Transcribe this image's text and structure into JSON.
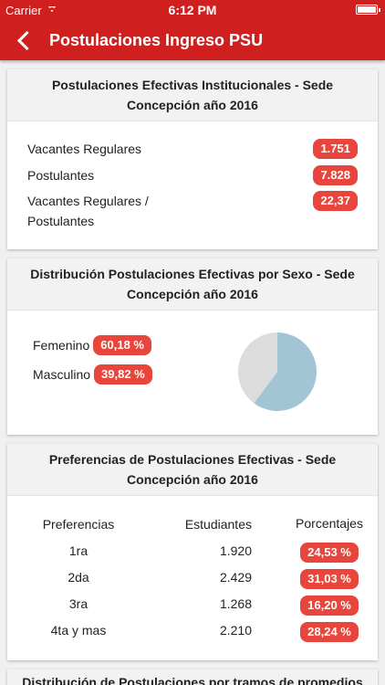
{
  "status": {
    "carrier": "Carrier",
    "time": "6:12 PM"
  },
  "nav": {
    "title": "Postulaciones Ingreso PSU"
  },
  "card1": {
    "title": "Postulaciones Efectivas Institucionales - Sede Concepción año 2016",
    "rows": [
      {
        "label": "Vacantes Regulares",
        "value": "1.751"
      },
      {
        "label": "Postulantes",
        "value": "7.828"
      },
      {
        "label": "Vacantes Regulares / Postulantes",
        "value": "22,37"
      }
    ]
  },
  "card2": {
    "title": "Distribución Postulaciones Efectivas por Sexo - Sede Concepción año 2016",
    "rows": [
      {
        "label": "Femenino",
        "value": "60,18 %"
      },
      {
        "label": "Masculino",
        "value": "39,82 %"
      }
    ]
  },
  "chart_data": {
    "type": "pie",
    "categories": [
      "Femenino",
      "Masculino"
    ],
    "values": [
      60.18,
      39.82
    ],
    "colors": [
      "#a3c4d4",
      "#dcdcdc"
    ]
  },
  "card3": {
    "title": "Preferencias de Postulaciones Efectivas - Sede Concepción año 2016",
    "headers": {
      "c1": "Preferencias",
      "c2": "Estudiantes",
      "c3": "Porcentajes"
    },
    "rows": [
      {
        "pref": "1ra",
        "students": "1.920",
        "pct": "24,53 %"
      },
      {
        "pref": "2da",
        "students": "2.429",
        "pct": "31,03 %"
      },
      {
        "pref": "3ra",
        "students": "1.268",
        "pct": "16,20 %"
      },
      {
        "pref": "4ta y mas",
        "students": "2.210",
        "pct": "28,24 %"
      }
    ]
  },
  "card4": {
    "title": "Distribución de Postulaciones por tramos de promedios NEM"
  }
}
